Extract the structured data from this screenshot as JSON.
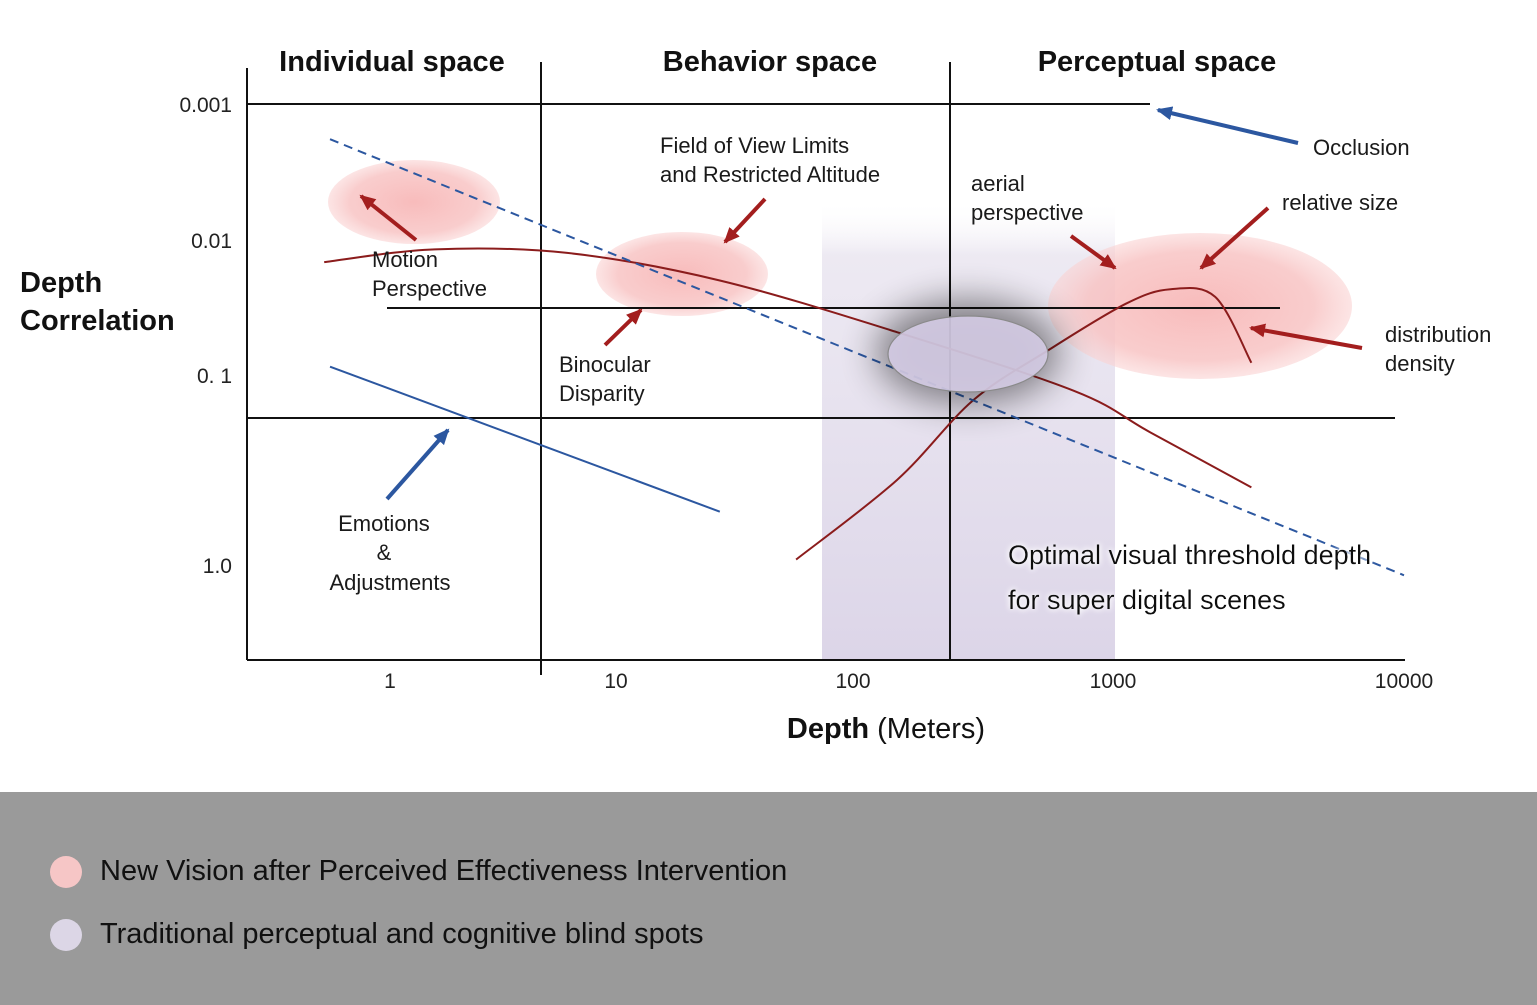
{
  "chart_data": {
    "type": "line",
    "xlabel": "Depth",
    "xlabel_unit": "(Meters)",
    "ylabel": "Depth\nCorrelation",
    "x_scale": "log",
    "y_scale": "log",
    "x_ticks": [
      "1",
      "10",
      "100",
      "1000",
      "10000"
    ],
    "y_ticks": [
      "0.001",
      "0.01",
      "0. 1",
      "1.0"
    ],
    "regions": [
      {
        "name": "Individual space"
      },
      {
        "name": "Behavior space"
      },
      {
        "name": "Perceptual space"
      }
    ],
    "series": [
      {
        "key": "motion_perspective",
        "style": "solid",
        "color": "#8b1c1c",
        "points": [
          [
            0.55,
            0.014
          ],
          [
            1.5,
            0.0113
          ],
          [
            5,
            0.012
          ],
          [
            20,
            0.019
          ],
          [
            100,
            0.045
          ],
          [
            500,
            0.12
          ],
          [
            1000,
            0.24
          ],
          [
            2500,
            0.6
          ]
        ]
      },
      {
        "key": "relative_size",
        "style": "solid",
        "color": "#8b1c1c",
        "points": [
          [
            40,
            2.0
          ],
          [
            100,
            0.53
          ],
          [
            200,
            0.14
          ],
          [
            400,
            0.06
          ],
          [
            800,
            0.028
          ],
          [
            1200,
            0.022
          ],
          [
            1800,
            0.025
          ],
          [
            2500,
            0.075
          ]
        ]
      },
      {
        "key": "occlusion",
        "style": "dashed",
        "color": "#2c57a0",
        "points": [
          [
            0.58,
            0.0018
          ],
          [
            10000,
            2.6
          ]
        ]
      },
      {
        "key": "emotions_adjustments",
        "style": "solid",
        "color": "#2c57a0",
        "points": [
          [
            0.58,
            0.08
          ],
          [
            20,
            0.9
          ]
        ]
      }
    ],
    "annotations": [
      {
        "key": "motion",
        "lines": [
          "Motion",
          "Perspective"
        ]
      },
      {
        "key": "fov",
        "lines": [
          "Field of View Limits",
          "and Restricted Altitude"
        ]
      },
      {
        "key": "binocular",
        "lines": [
          "Binocular",
          "Disparity"
        ]
      },
      {
        "key": "emotions",
        "lines": [
          "Emotions",
          "&",
          "Adjustments"
        ]
      },
      {
        "key": "aerial",
        "lines": [
          "aerial",
          "perspective"
        ]
      },
      {
        "key": "relative",
        "lines": [
          "relative size"
        ]
      },
      {
        "key": "occlusion",
        "lines": [
          "Occlusion"
        ]
      },
      {
        "key": "distribution",
        "lines": [
          "distribution",
          "density"
        ]
      },
      {
        "key": "optimal",
        "lines": [
          "Optimal visual threshold depth",
          "for super digital scenes"
        ]
      }
    ]
  },
  "legend": {
    "items": [
      {
        "label": "New Vision after Perceived Effectiveness Intervention",
        "color": "#f6c6c6"
      },
      {
        "label": "Traditional perceptual and cognitive blind spots",
        "color": "#dcd6e6"
      }
    ]
  },
  "colors": {
    "red_curve": "#8b1c1c",
    "blue_line": "#2c57a0",
    "pink_zone": "#f8c4c4",
    "lavender_zone": "#d9d2e6",
    "legend_background": "#9a9a9a"
  }
}
